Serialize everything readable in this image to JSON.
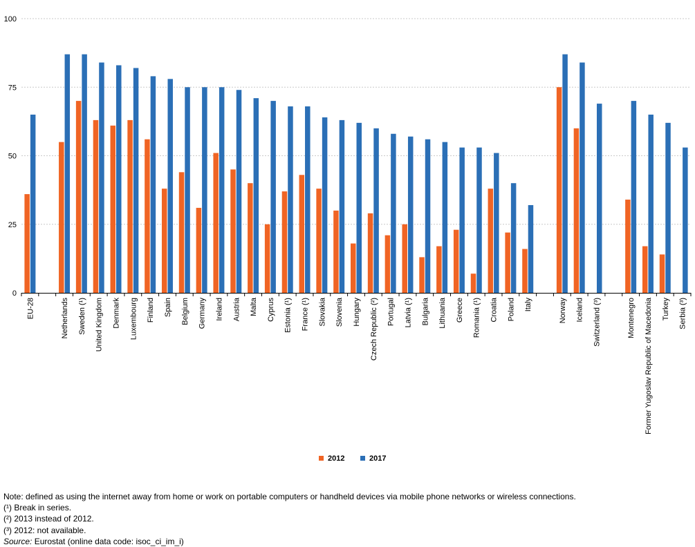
{
  "chart_data": {
    "type": "bar",
    "ylim": [
      0,
      100
    ],
    "yticks": [
      0,
      25,
      50,
      75,
      100
    ],
    "grid": true,
    "legend_position": "bottom-center",
    "categories": [
      "EU-28",
      "",
      "Netherlands",
      "Sweden (¹)",
      "United Kingdom",
      "Denmark",
      "Luxembourg",
      "Finland",
      "Spain",
      "Belgium",
      "Germany",
      "Ireland",
      "Austria",
      "Malta",
      "Cyprus",
      "Estonia (¹)",
      "France (¹)",
      "Slovakia",
      "Slovenia",
      "Hungary",
      "Czech Republic (²)",
      "Portugal",
      "Latvia (¹)",
      "Bulgaria",
      "Lithuania",
      "Greece",
      "Romania (¹)",
      "Croatia",
      "Poland",
      "Italy",
      "",
      "Norway",
      "Iceland",
      "Switzerland (³)",
      "",
      "Montenegro",
      "Former Yugoslav Republic of Macedonia",
      "Turkey",
      "Serbia (³)"
    ],
    "series": [
      {
        "name": "2012",
        "color": "#f06424",
        "values": [
          36,
          null,
          55,
          70,
          63,
          61,
          63,
          56,
          38,
          44,
          31,
          51,
          45,
          40,
          25,
          37,
          43,
          38,
          30,
          18,
          29,
          21,
          25,
          13,
          17,
          23,
          7,
          38,
          22,
          16,
          null,
          75,
          60,
          null,
          null,
          34,
          17,
          14,
          null
        ]
      },
      {
        "name": "2017",
        "color": "#2b6fb6",
        "values": [
          65,
          null,
          87,
          87,
          84,
          83,
          82,
          79,
          78,
          75,
          75,
          75,
          74,
          71,
          70,
          68,
          68,
          64,
          63,
          62,
          60,
          58,
          57,
          56,
          55,
          53,
          53,
          51,
          40,
          32,
          null,
          87,
          84,
          69,
          null,
          70,
          65,
          62,
          53
        ]
      }
    ]
  },
  "notes": {
    "note": "Note: defined as using the internet away from home or work on portable computers or handheld devices via mobile phone networks or wireless connections.",
    "fn1": "(¹) Break in series.",
    "fn2": "(²) 2013 instead of 2012.",
    "fn3": "(³) 2012: not available.",
    "source_label": "Source:",
    "source_text": " Eurostat (online data code: isoc_ci_im_i)"
  }
}
